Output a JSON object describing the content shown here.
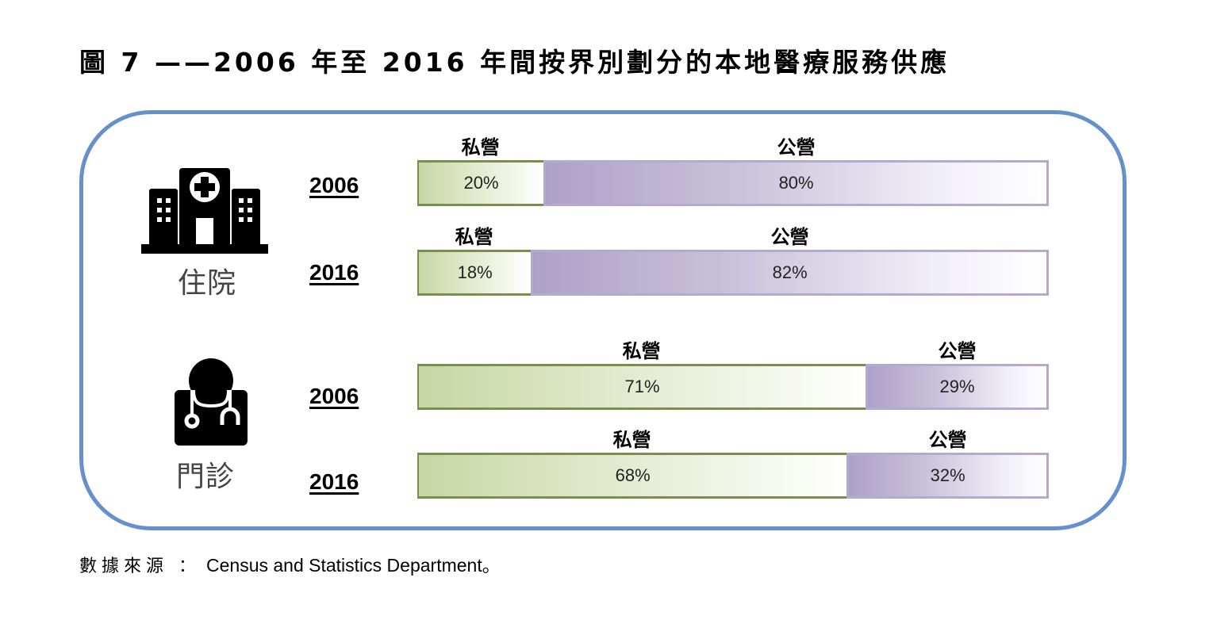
{
  "title": "圖 7 ——2006 年至 2016 年間按界別劃分的本地醫療服務供應",
  "source": {
    "label": "數據來源 ：",
    "text": "Census and Statistics Department。"
  },
  "colors": {
    "frame": "#6590cc",
    "private": "#c8d6a5",
    "private_border": "#7a8f4f",
    "public": "#ada1c7",
    "public_border": "#b5a9cd"
  },
  "chart_data": {
    "type": "bar",
    "orientation": "horizontal",
    "stacked": true,
    "title": "圖 7 ——2006 年至 2016 年間按界別劃分的本地醫療服務供應",
    "unit": "%",
    "groups": [
      {
        "name": "住院",
        "icon": "hospital-icon",
        "rows": [
          {
            "year": "2006",
            "series": [
              {
                "name": "私營",
                "value": 20,
                "label": "20%"
              },
              {
                "name": "公營",
                "value": 80,
                "label": "80%"
              }
            ]
          },
          {
            "year": "2016",
            "series": [
              {
                "name": "私營",
                "value": 18,
                "label": "18%"
              },
              {
                "name": "公營",
                "value": 82,
                "label": "82%"
              }
            ]
          }
        ]
      },
      {
        "name": "門診",
        "icon": "doctor-icon",
        "rows": [
          {
            "year": "2006",
            "series": [
              {
                "name": "私營",
                "value": 71,
                "label": "71%"
              },
              {
                "name": "公營",
                "value": 29,
                "label": "29%"
              }
            ]
          },
          {
            "year": "2016",
            "series": [
              {
                "name": "私營",
                "value": 68,
                "label": "68%"
              },
              {
                "name": "公營",
                "value": 32,
                "label": "32%"
              }
            ]
          }
        ]
      }
    ],
    "xlim": [
      0,
      100
    ]
  }
}
